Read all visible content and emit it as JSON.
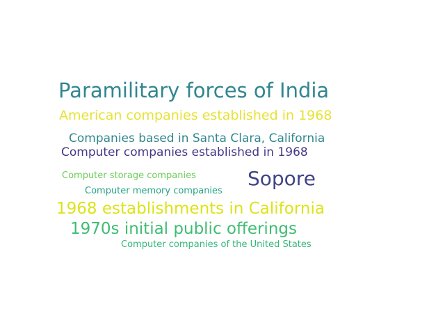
{
  "words": [
    {
      "text": "Paramilitary forces of India",
      "color": "#31868f"
    },
    {
      "text": "American companies established in 1968",
      "color": "#e6e234"
    },
    {
      "text": "Companies based in Santa Clara, California",
      "color": "#30868e"
    },
    {
      "text": "Computer companies established in 1968",
      "color": "#453885"
    },
    {
      "text": "Computer storage companies",
      "color": "#6dcc5a"
    },
    {
      "text": "Sopore",
      "color": "#414487"
    },
    {
      "text": "Computer memory companies",
      "color": "#26a584"
    },
    {
      "text": "1968 establishments in California",
      "color": "#dde318"
    },
    {
      "text": "1970s initial public offerings",
      "color": "#3fbc73"
    },
    {
      "text": "Computer companies of the United States",
      "color": "#34b679"
    }
  ]
}
